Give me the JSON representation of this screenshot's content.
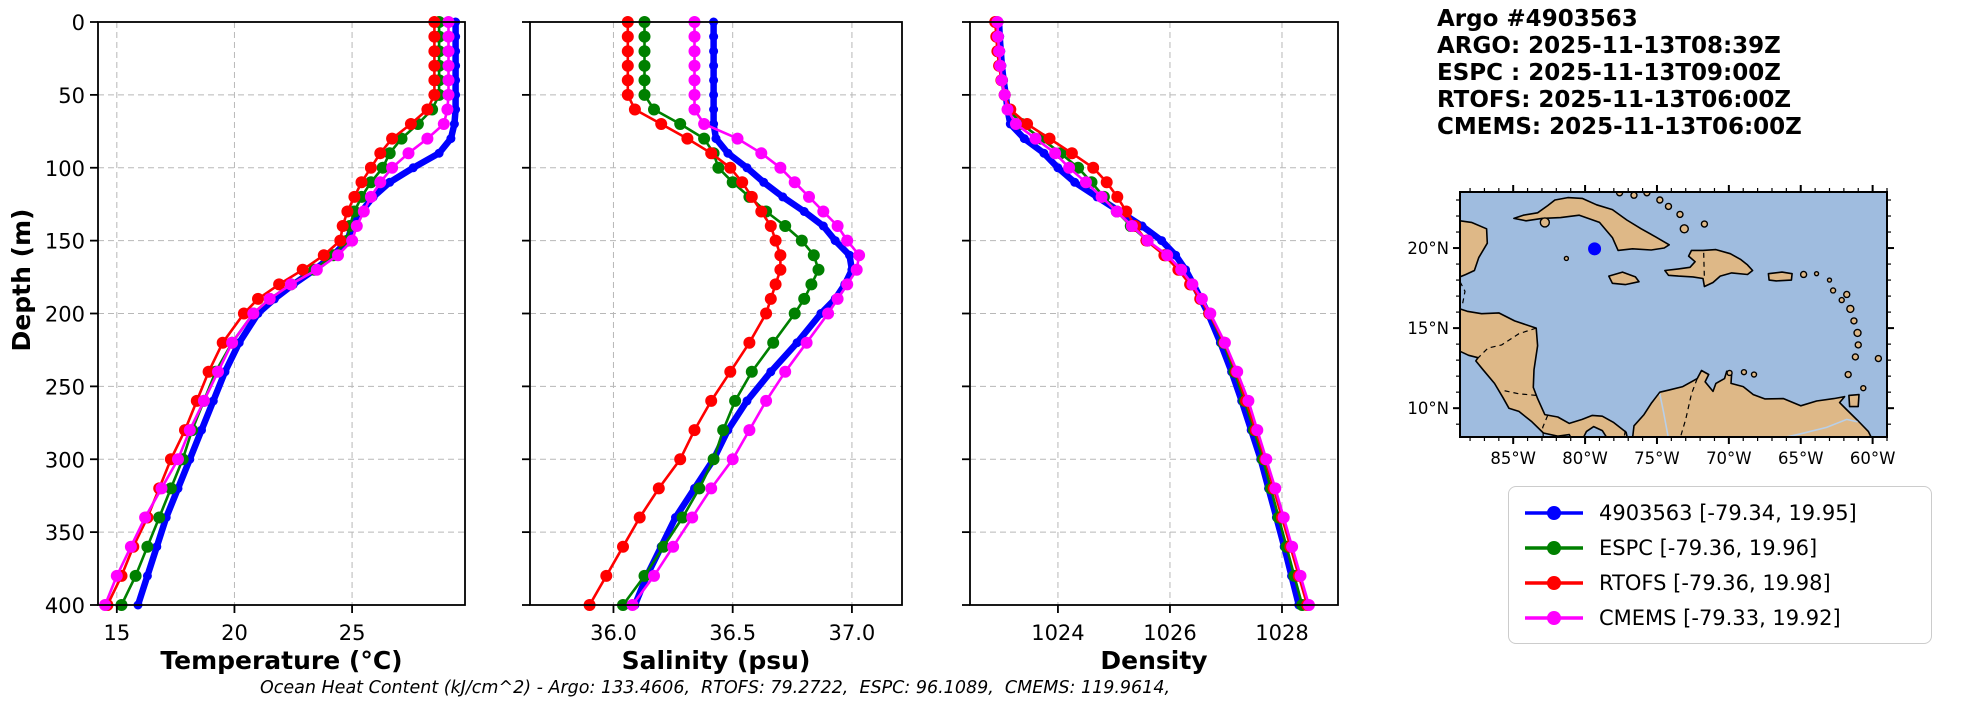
{
  "header": {
    "title": "Argo #4903563",
    "lines": [
      "ARGO: 2025-11-13T08:39Z",
      "ESPC : 2025-11-13T09:00Z",
      "RTOFS: 2025-11-13T06:00Z",
      "CMEMS: 2025-11-13T06:00Z"
    ]
  },
  "footer": {
    "text": "Ocean Heat Content (kJ/cm^2) - Argo: 133.4606,  RTOFS: 79.2722,  ESPC: 96.1089,  CMEMS: 119.9614,"
  },
  "colors": {
    "argo": "#0000FF",
    "espc": "#008000",
    "rtofs": "#FF0000",
    "cmems": "#FF00FF",
    "land": "#DEB887",
    "ocean": "#9FBCDF",
    "grid": "#b8b8b8"
  },
  "legend": {
    "items": [
      {
        "name": "4903563",
        "label": "4903563 [-79.34, 19.95]",
        "color": "#0000FF"
      },
      {
        "name": "ESPC",
        "label": "ESPC [-79.36, 19.96]",
        "color": "#008000"
      },
      {
        "name": "RTOFS",
        "label": "RTOFS [-79.36, 19.98]",
        "color": "#FF0000"
      },
      {
        "name": "CMEMS",
        "label": "CMEMS [-79.33, 19.92]",
        "color": "#FF00FF"
      }
    ]
  },
  "map": {
    "lon_ticks": [
      -85,
      -80,
      -75,
      -70,
      -65,
      -60
    ],
    "lon_tick_labels": [
      "85°W",
      "80°W",
      "75°W",
      "70°W",
      "65°W",
      "60°W"
    ],
    "lat_ticks": [
      20,
      15,
      10
    ],
    "lat_tick_labels": [
      "20°N",
      "15°N",
      "10°N"
    ],
    "float_marker": {
      "lon": -79.34,
      "lat": 19.95,
      "color": "#0000FF"
    }
  },
  "axes_shared": {
    "ylabel": "Depth (m)",
    "yticks": [
      0,
      50,
      100,
      150,
      200,
      250,
      300,
      350,
      400
    ],
    "ytick_labels": [
      "0",
      "50",
      "100",
      "150",
      "200",
      "250",
      "300",
      "350",
      "400"
    ]
  },
  "chart_data": [
    {
      "type": "line",
      "xlabel": "Temperature (°C)",
      "ylabel": "Depth (m)",
      "xlim": [
        14.2,
        29.8
      ],
      "ylim": [
        400,
        0
      ],
      "grid": true,
      "legend_position": "outside-right",
      "xticks": [
        15,
        20,
        25
      ],
      "xtick_labels": [
        "15",
        "20",
        "25"
      ],
      "depths": [
        0,
        10,
        20,
        30,
        40,
        50,
        60,
        70,
        80,
        90,
        100,
        110,
        120,
        130,
        140,
        150,
        160,
        170,
        180,
        190,
        200,
        220,
        240,
        260,
        280,
        300,
        320,
        340,
        360,
        380,
        400
      ],
      "series": [
        {
          "name": "4903563",
          "color": "#0000FF",
          "lw": 6.5,
          "ms": 4.5,
          "values": [
            29.4,
            29.4,
            29.4,
            29.4,
            29.4,
            29.4,
            29.4,
            29.35,
            29.2,
            28.7,
            27.6,
            26.6,
            25.9,
            25.4,
            25.0,
            24.8,
            24.2,
            23.4,
            22.5,
            21.7,
            21.0,
            20.2,
            19.6,
            19.1,
            18.6,
            18.1,
            17.6,
            17.1,
            16.7,
            16.3,
            15.9
          ]
        },
        {
          "name": "ESPC",
          "color": "#008000",
          "lw": 2.6,
          "ms": 6,
          "values": [
            28.7,
            28.7,
            28.7,
            28.7,
            28.7,
            28.7,
            28.4,
            27.8,
            27.1,
            26.6,
            26.3,
            25.8,
            25.4,
            25.1,
            24.9,
            24.8,
            24.2,
            23.4,
            22.4,
            21.5,
            20.8,
            19.9,
            19.2,
            18.7,
            18.2,
            17.8,
            17.3,
            16.8,
            16.3,
            15.8,
            15.2
          ]
        },
        {
          "name": "RTOFS",
          "color": "#FF0000",
          "lw": 2.6,
          "ms": 6,
          "values": [
            28.5,
            28.5,
            28.5,
            28.5,
            28.5,
            28.5,
            28.2,
            27.5,
            26.7,
            26.2,
            25.8,
            25.4,
            25.1,
            24.8,
            24.6,
            24.5,
            23.8,
            22.9,
            21.9,
            21.0,
            20.4,
            19.5,
            18.9,
            18.4,
            17.9,
            17.3,
            16.8,
            16.3,
            15.7,
            15.2,
            14.6
          ]
        },
        {
          "name": "CMEMS",
          "color": "#FF00FF",
          "lw": 2.6,
          "ms": 6,
          "values": [
            29.1,
            29.1,
            29.1,
            29.1,
            29.1,
            29.1,
            29.05,
            28.9,
            28.2,
            27.4,
            26.7,
            26.2,
            25.8,
            25.5,
            25.2,
            25.0,
            24.4,
            23.5,
            22.4,
            21.5,
            20.8,
            19.9,
            19.3,
            18.7,
            18.1,
            17.6,
            16.9,
            16.2,
            15.6,
            15.0,
            14.5
          ]
        }
      ]
    },
    {
      "type": "line",
      "xlabel": "Salinity (psu)",
      "xlim": [
        35.65,
        37.21
      ],
      "ylim": [
        400,
        0
      ],
      "grid": true,
      "xticks": [
        36.0,
        36.5,
        37.0
      ],
      "xtick_labels": [
        "36.0",
        "36.5",
        "37.0"
      ],
      "depths": [
        0,
        10,
        20,
        30,
        40,
        50,
        60,
        70,
        80,
        90,
        100,
        110,
        120,
        130,
        140,
        150,
        160,
        170,
        180,
        190,
        200,
        220,
        240,
        260,
        280,
        300,
        320,
        340,
        360,
        380,
        400
      ],
      "series": [
        {
          "name": "4903563",
          "color": "#0000FF",
          "lw": 6.5,
          "ms": 4.5,
          "values": [
            36.42,
            36.42,
            36.42,
            36.42,
            36.42,
            36.42,
            36.42,
            36.42,
            36.43,
            36.48,
            36.56,
            36.63,
            36.71,
            36.8,
            36.88,
            36.93,
            36.99,
            37.0,
            36.97,
            36.93,
            36.87,
            36.77,
            36.66,
            36.56,
            36.48,
            36.42,
            36.34,
            36.26,
            36.2,
            36.14,
            36.09
          ]
        },
        {
          "name": "ESPC",
          "color": "#008000",
          "lw": 2.6,
          "ms": 6,
          "values": [
            36.13,
            36.13,
            36.13,
            36.13,
            36.13,
            36.13,
            36.17,
            36.28,
            36.38,
            36.42,
            36.44,
            36.5,
            36.57,
            36.64,
            36.72,
            36.79,
            36.84,
            36.86,
            36.83,
            36.8,
            36.76,
            36.67,
            36.58,
            36.51,
            36.46,
            36.42,
            36.36,
            36.29,
            36.21,
            36.13,
            36.04
          ]
        },
        {
          "name": "RTOFS",
          "color": "#FF0000",
          "lw": 2.6,
          "ms": 6,
          "values": [
            36.06,
            36.06,
            36.06,
            36.06,
            36.06,
            36.06,
            36.09,
            36.2,
            36.31,
            36.41,
            36.49,
            36.54,
            36.58,
            36.62,
            36.66,
            36.68,
            36.7,
            36.7,
            36.68,
            36.66,
            36.64,
            36.57,
            36.49,
            36.41,
            36.34,
            36.28,
            36.19,
            36.11,
            36.04,
            35.97,
            35.9
          ]
        },
        {
          "name": "CMEMS",
          "color": "#FF00FF",
          "lw": 2.6,
          "ms": 6,
          "values": [
            36.34,
            36.34,
            36.34,
            36.34,
            36.34,
            36.34,
            36.34,
            36.38,
            36.52,
            36.62,
            36.7,
            36.76,
            36.82,
            36.88,
            36.94,
            36.98,
            37.03,
            37.02,
            36.98,
            36.94,
            36.9,
            36.81,
            36.72,
            36.64,
            36.57,
            36.5,
            36.41,
            36.33,
            36.25,
            36.17,
            36.08
          ]
        }
      ]
    },
    {
      "type": "line",
      "xlabel": "Density",
      "xlim": [
        1022.43,
        1029.0
      ],
      "ylim": [
        400,
        0
      ],
      "grid": true,
      "xticks": [
        1024,
        1026,
        1028
      ],
      "xtick_labels": [
        "1024",
        "1026",
        "1028"
      ],
      "depths": [
        0,
        10,
        20,
        30,
        40,
        50,
        60,
        70,
        80,
        90,
        100,
        110,
        120,
        130,
        140,
        150,
        160,
        170,
        180,
        190,
        200,
        220,
        240,
        260,
        280,
        300,
        320,
        340,
        360,
        380,
        400
      ],
      "series": [
        {
          "name": "4903563",
          "color": "#0000FF",
          "lw": 6.5,
          "ms": 4.5,
          "values": [
            1022.95,
            1022.96,
            1022.98,
            1023.0,
            1023.03,
            1023.07,
            1023.1,
            1023.15,
            1023.4,
            1023.75,
            1024.0,
            1024.3,
            1024.7,
            1025.1,
            1025.5,
            1025.85,
            1026.1,
            1026.28,
            1026.42,
            1026.55,
            1026.68,
            1026.9,
            1027.1,
            1027.28,
            1027.45,
            1027.62,
            1027.76,
            1027.9,
            1028.04,
            1028.17,
            1028.3
          ]
        },
        {
          "name": "ESPC",
          "color": "#008000",
          "lw": 2.6,
          "ms": 6,
          "values": [
            1022.9,
            1022.91,
            1022.93,
            1022.96,
            1023.0,
            1023.05,
            1023.12,
            1023.35,
            1023.7,
            1024.05,
            1024.36,
            1024.6,
            1024.82,
            1025.05,
            1025.3,
            1025.6,
            1025.92,
            1026.18,
            1026.38,
            1026.55,
            1026.7,
            1026.95,
            1027.15,
            1027.33,
            1027.5,
            1027.66,
            1027.8,
            1027.94,
            1028.08,
            1028.22,
            1028.36
          ]
        },
        {
          "name": "RTOFS",
          "color": "#FF0000",
          "lw": 2.6,
          "ms": 6,
          "values": [
            1022.88,
            1022.9,
            1022.92,
            1022.95,
            1022.99,
            1023.05,
            1023.15,
            1023.45,
            1023.85,
            1024.25,
            1024.63,
            1024.87,
            1025.06,
            1025.22,
            1025.38,
            1025.58,
            1025.9,
            1026.15,
            1026.36,
            1026.54,
            1026.7,
            1026.97,
            1027.18,
            1027.36,
            1027.53,
            1027.7,
            1027.85,
            1028.0,
            1028.15,
            1028.3,
            1028.45
          ]
        },
        {
          "name": "CMEMS",
          "color": "#FF00FF",
          "lw": 2.6,
          "ms": 6,
          "values": [
            1022.92,
            1022.93,
            1022.95,
            1022.97,
            1023.0,
            1023.05,
            1023.1,
            1023.25,
            1023.6,
            1023.95,
            1024.2,
            1024.5,
            1024.78,
            1025.05,
            1025.32,
            1025.6,
            1025.95,
            1026.2,
            1026.4,
            1026.57,
            1026.72,
            1026.98,
            1027.2,
            1027.4,
            1027.56,
            1027.72,
            1027.88,
            1028.03,
            1028.18,
            1028.33,
            1028.48
          ]
        }
      ]
    }
  ]
}
